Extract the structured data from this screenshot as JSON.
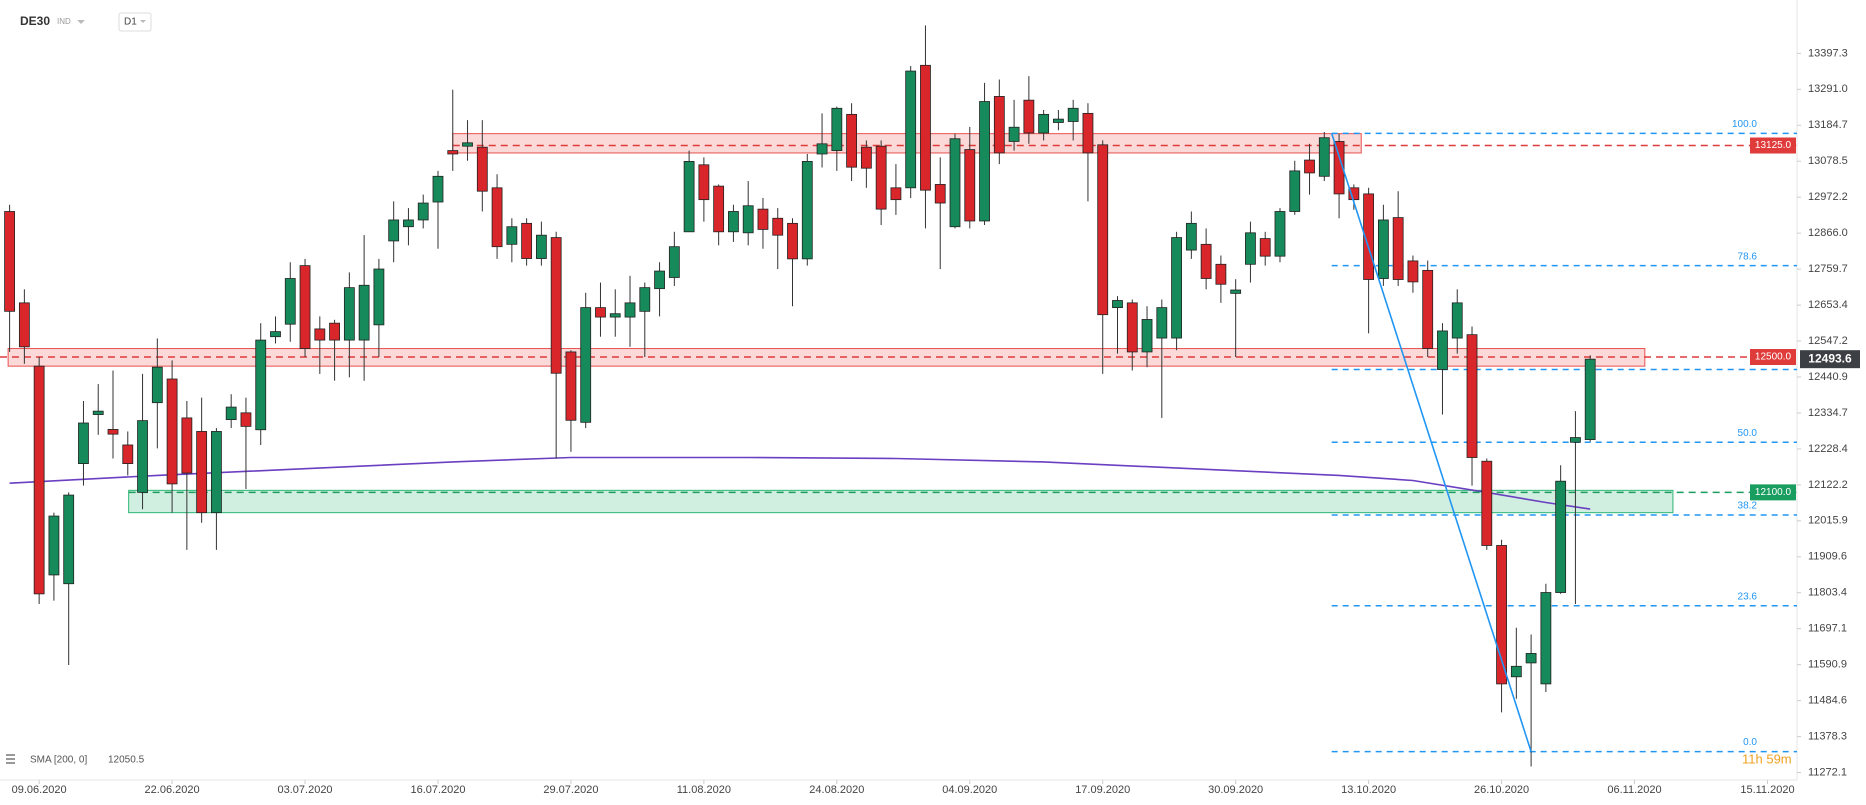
{
  "chart_data": {
    "type": "candlestick",
    "title": "DE30",
    "subtitle": "IND",
    "timeframe": "D1",
    "timer": "11h 59m",
    "xlim": [
      -0.65,
      121
    ],
    "ylim": [
      11250,
      13555
    ],
    "yticks": [
      13397.3,
      {
        "value": 13291,
        "label": "13291.0"
      },
      13184.7,
      13078.5,
      12972.2,
      {
        "value": 12866,
        "label": "12866.0"
      },
      12759.7,
      12653.4,
      12547.2,
      12440.9,
      12334.7,
      12228.4,
      12122.2,
      12015.9,
      11909.6,
      11803.4,
      11697.1,
      11590.9,
      11484.6,
      11378.3,
      11272.1
    ],
    "xticks": [
      {
        "value": 2,
        "label": "09.06.2020"
      },
      {
        "value": 11,
        "label": "22.06.2020"
      },
      {
        "value": 20,
        "label": "03.07.2020"
      },
      {
        "value": 29,
        "label": "16.07.2020"
      },
      {
        "value": 38,
        "label": "29.07.2020"
      },
      {
        "value": 47,
        "label": "11.08.2020"
      },
      {
        "value": 56,
        "label": "24.08.2020"
      },
      {
        "value": 65,
        "label": "04.09.2020"
      },
      {
        "value": 74,
        "label": "17.09.2020"
      },
      {
        "value": 83,
        "label": "30.09.2020"
      },
      {
        "value": 92,
        "label": "13.10.2020"
      },
      {
        "value": 101,
        "label": "26.10.2020"
      },
      {
        "value": 110,
        "label": "06.11.2020"
      },
      {
        "value": 119,
        "label": "15.11.2020"
      }
    ],
    "up_color": "#178a5b",
    "down_color": "#d9262b",
    "open": [
      12930,
      12660,
      12473,
      11856,
      11830,
      12185,
      12330,
      12286,
      12240,
      12100,
      12365,
      12435,
      12320,
      12280,
      12040,
      12315,
      12335,
      12285,
      12560,
      12597,
      12770,
      12583,
      12600,
      12550,
      12550,
      12595,
      12843,
      12885,
      12905,
      12958,
      13110,
      13123,
      13120,
      13000,
      12833,
      12895,
      12791,
      12853,
      12515,
      12307,
      12646,
      12618,
      12618,
      12635,
      12702,
      12735,
      12870,
      13068,
      13005,
      12870,
      12867,
      12937,
      12910,
      12895,
      12790,
      13100,
      13110,
      13217,
      13120,
      13123,
      13000,
      13000,
      13362,
      13010,
      12885,
      13113,
      12902,
      13270,
      13137,
      13259,
      13162,
      13193,
      13196,
      13220,
      13127,
      12646,
      12660,
      12515,
      12556,
      12556,
      12816,
      12833,
      12774,
      12688,
      12774,
      12850,
      12798,
      12930,
      13082,
      13034,
      13137,
      13000,
      12982,
      12732,
      12912,
      12784,
      12756,
      12463,
      12556,
      12566,
      12192,
      11943,
      11555,
      11596,
      11534,
      11804,
      12248,
      12256
    ],
    "high": [
      12950,
      12700,
      12500,
      12040,
      12100,
      12370,
      12420,
      12460,
      12280,
      12450,
      12555,
      12490,
      12370,
      12380,
      12290,
      12390,
      12380,
      12600,
      12620,
      12780,
      12790,
      12620,
      12610,
      12750,
      12860,
      12790,
      12960,
      12940,
      12980,
      13050,
      13290,
      13200,
      13200,
      13040,
      12910,
      12910,
      12900,
      12870,
      12520,
      12690,
      12720,
      12700,
      12740,
      12720,
      12780,
      12870,
      13110,
      13090,
      13010,
      12950,
      13020,
      12970,
      12940,
      12910,
      13100,
      13220,
      13240,
      13250,
      13140,
      13140,
      13070,
      13360,
      13480,
      13090,
      13160,
      13180,
      13310,
      13320,
      13260,
      13330,
      13230,
      13230,
      13260,
      13250,
      13140,
      12680,
      12670,
      12650,
      12670,
      12870,
      12930,
      12880,
      12800,
      12730,
      12900,
      12870,
      12940,
      13080,
      13130,
      13165,
      13160,
      13010,
      13000,
      12950,
      12990,
      12800,
      12785,
      12600,
      12700,
      12590,
      12200,
      11960,
      11700,
      11680,
      11830,
      12180,
      12340,
      12505
    ],
    "low": [
      12515,
      12480,
      11770,
      11780,
      11590,
      12120,
      12270,
      12200,
      12150,
      12050,
      12230,
      12040,
      11930,
      12010,
      11930,
      12290,
      12110,
      12240,
      12540,
      12545,
      12500,
      12450,
      12430,
      12440,
      12430,
      12500,
      12780,
      12830,
      12880,
      12820,
      13050,
      13080,
      12930,
      12790,
      12780,
      12770,
      12770,
      12200,
      12220,
      12290,
      12560,
      12560,
      12530,
      12500,
      12620,
      12710,
      12870,
      12900,
      12830,
      12840,
      12830,
      12820,
      12760,
      12650,
      12770,
      13060,
      13050,
      13020,
      13000,
      12890,
      12920,
      12970,
      12880,
      12760,
      12880,
      12880,
      12890,
      13070,
      13110,
      13130,
      13140,
      13170,
      13140,
      12960,
      12450,
      12510,
      12460,
      12470,
      12320,
      12520,
      12790,
      12700,
      12660,
      12500,
      12720,
      12770,
      12780,
      12920,
      12980,
      13020,
      12910,
      12935,
      12570,
      12710,
      12710,
      12690,
      12500,
      12330,
      12510,
      12120,
      11930,
      11450,
      11490,
      11290,
      11510,
      11800,
      11770,
      12250
    ],
    "close": [
      12635,
      12530,
      11800,
      12030,
      12092,
      12305,
      12340,
      12272,
      12185,
      12312,
      12470,
      12125,
      12157,
      12040,
      12280,
      12352,
      12295,
      12550,
      12575,
      12732,
      12525,
      12550,
      12550,
      12705,
      12712,
      12760,
      12905,
      12905,
      12955,
      13034,
      13100,
      13133,
      12990,
      12826,
      12885,
      12791,
      12860,
      12452,
      12313,
      12646,
      12618,
      12628,
      12660,
      12705,
      12754,
      12826,
      13078,
      12965,
      12870,
      12930,
      12947,
      12877,
      12860,
      12790,
      13078,
      13130,
      13235,
      13061,
      13058,
      12937,
      12965,
      13345,
      12993,
      12955,
      13145,
      12902,
      13255,
      13103,
      13179,
      13162,
      13217,
      13203,
      13235,
      13103,
      12625,
      12667,
      12515,
      12611,
      12646,
      12853,
      12895,
      12732,
      12715,
      12698,
      12867,
      12798,
      12930,
      13050,
      13044,
      13148,
      12982,
      12965,
      12729,
      12905,
      12729,
      12722,
      12525,
      12577,
      12660,
      12203,
      11943,
      11534,
      11586,
      11624,
      11804,
      12133,
      12262,
      12493.6
    ],
    "sma": {
      "name": "SMA [200, 0]",
      "color": "#6a3fc1",
      "x": [
        0,
        10,
        20,
        30,
        38,
        50,
        60,
        70,
        80,
        90,
        95,
        100,
        104,
        107
      ],
      "values": [
        12127,
        12150,
        12170,
        12190,
        12203,
        12203,
        12200,
        12190,
        12170,
        12150,
        12135,
        12100,
        12070,
        12050.5
      ]
    },
    "zones": [
      {
        "low": 13103,
        "high": 13160,
        "x": [
          30,
          91.5
        ],
        "color": "#e8504f"
      },
      {
        "low": 12473,
        "high": 12525,
        "x": [
          -0.1,
          110.7
        ],
        "color": "#e8504f"
      },
      {
        "low": 12040,
        "high": 12106,
        "x": [
          8.06,
          112.6
        ],
        "color": "#2bb673"
      }
    ],
    "levels": [
      {
        "price": 13125,
        "label": "13125.0",
        "color": "#e03b3b",
        "from": 30
      },
      {
        "price": 12500,
        "label": "12500.0",
        "color": "#e03b3b",
        "from": -0.65
      },
      {
        "price": 12100,
        "label": "12100.0",
        "color": "#1a9e5f",
        "from": 8.06
      }
    ],
    "fib": {
      "color": "#2196f3",
      "x": [
        89.5,
        121
      ],
      "levels": [
        13161,
        12770,
        12463,
        12248,
        12033,
        11765,
        11334
      ],
      "labels": [
        "100.0",
        "78.6",
        null,
        "50.0",
        "38.2",
        "23.6",
        "0.0"
      ]
    },
    "trendline": {
      "color": "#2196f3",
      "x": [
        89.5,
        103
      ],
      "values": [
        13161,
        11334
      ]
    }
  }
}
